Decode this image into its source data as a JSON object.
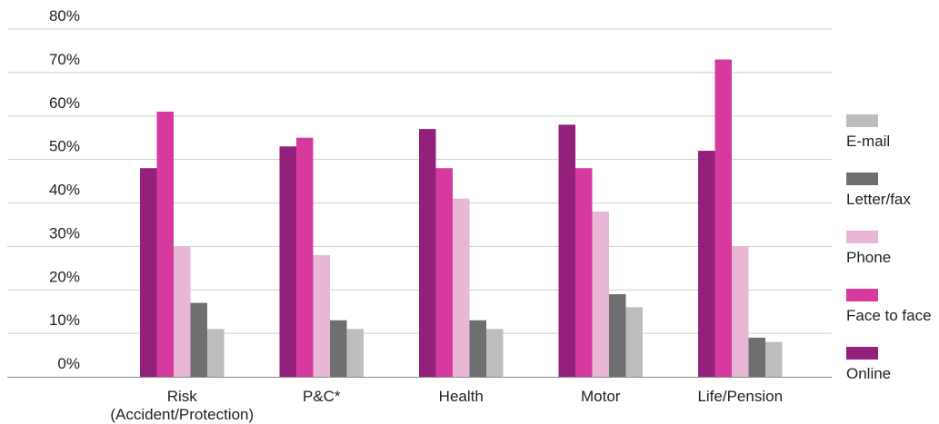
{
  "chart_data": {
    "type": "bar",
    "categories": [
      [
        "Risk",
        "(Accident/Protection)"
      ],
      [
        "P&C*"
      ],
      [
        "Health"
      ],
      [
        "Motor"
      ],
      [
        "Life/Pension"
      ]
    ],
    "series": [
      {
        "name": "Online",
        "color": "#93207a",
        "values": [
          48,
          53,
          57,
          58,
          52
        ]
      },
      {
        "name": "Face to face",
        "color": "#d63a9f",
        "values": [
          61,
          55,
          48,
          48,
          73
        ]
      },
      {
        "name": "Phone",
        "color": "#e8b7d6",
        "values": [
          30,
          28,
          41,
          38,
          30
        ]
      },
      {
        "name": "Letter/fax",
        "color": "#6f6f72",
        "values": [
          17,
          13,
          13,
          19,
          9
        ]
      },
      {
        "name": "E-mail",
        "color": "#bdbdbd",
        "values": [
          11,
          11,
          11,
          16,
          8
        ]
      }
    ],
    "y_ticks": [
      "0%",
      "10%",
      "20%",
      "30%",
      "40%",
      "50%",
      "60%",
      "70%",
      "80%"
    ],
    "ylim": [
      0,
      80
    ],
    "grid": true,
    "legend_position": "right",
    "legend_order": [
      "E-mail",
      "Letter/fax",
      "Phone",
      "Face to face",
      "Online"
    ]
  }
}
